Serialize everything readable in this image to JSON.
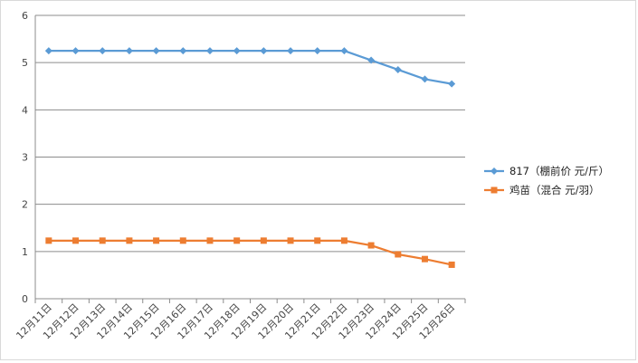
{
  "chart_data": {
    "type": "line",
    "title": "",
    "xlabel": "",
    "ylabel": "",
    "ylim": [
      0,
      6
    ],
    "yticks": [
      0,
      1,
      2,
      3,
      4,
      5,
      6
    ],
    "grid": "horizontal",
    "legend_position": "right",
    "categories": [
      "12月11日",
      "12月12日",
      "12月13日",
      "12月14日",
      "12月15日",
      "12月16日",
      "12月17日",
      "12月18日",
      "12月19日",
      "12月20日",
      "12月21日",
      "12月22日",
      "12月23日",
      "12月24日",
      "12月25日",
      "12月26日"
    ],
    "series": [
      {
        "name": "817（棚前价 元/斤）",
        "color": "#5b9bd5",
        "marker": "diamond",
        "values": [
          5.25,
          5.25,
          5.25,
          5.25,
          5.25,
          5.25,
          5.25,
          5.25,
          5.25,
          5.25,
          5.25,
          5.25,
          5.05,
          4.85,
          4.65,
          4.55
        ]
      },
      {
        "name": "鸡苗（混合 元/羽）",
        "color": "#ed7d31",
        "marker": "square",
        "values": [
          1.23,
          1.23,
          1.23,
          1.23,
          1.23,
          1.23,
          1.23,
          1.23,
          1.23,
          1.23,
          1.23,
          1.23,
          1.13,
          0.94,
          0.84,
          0.72
        ]
      }
    ]
  }
}
